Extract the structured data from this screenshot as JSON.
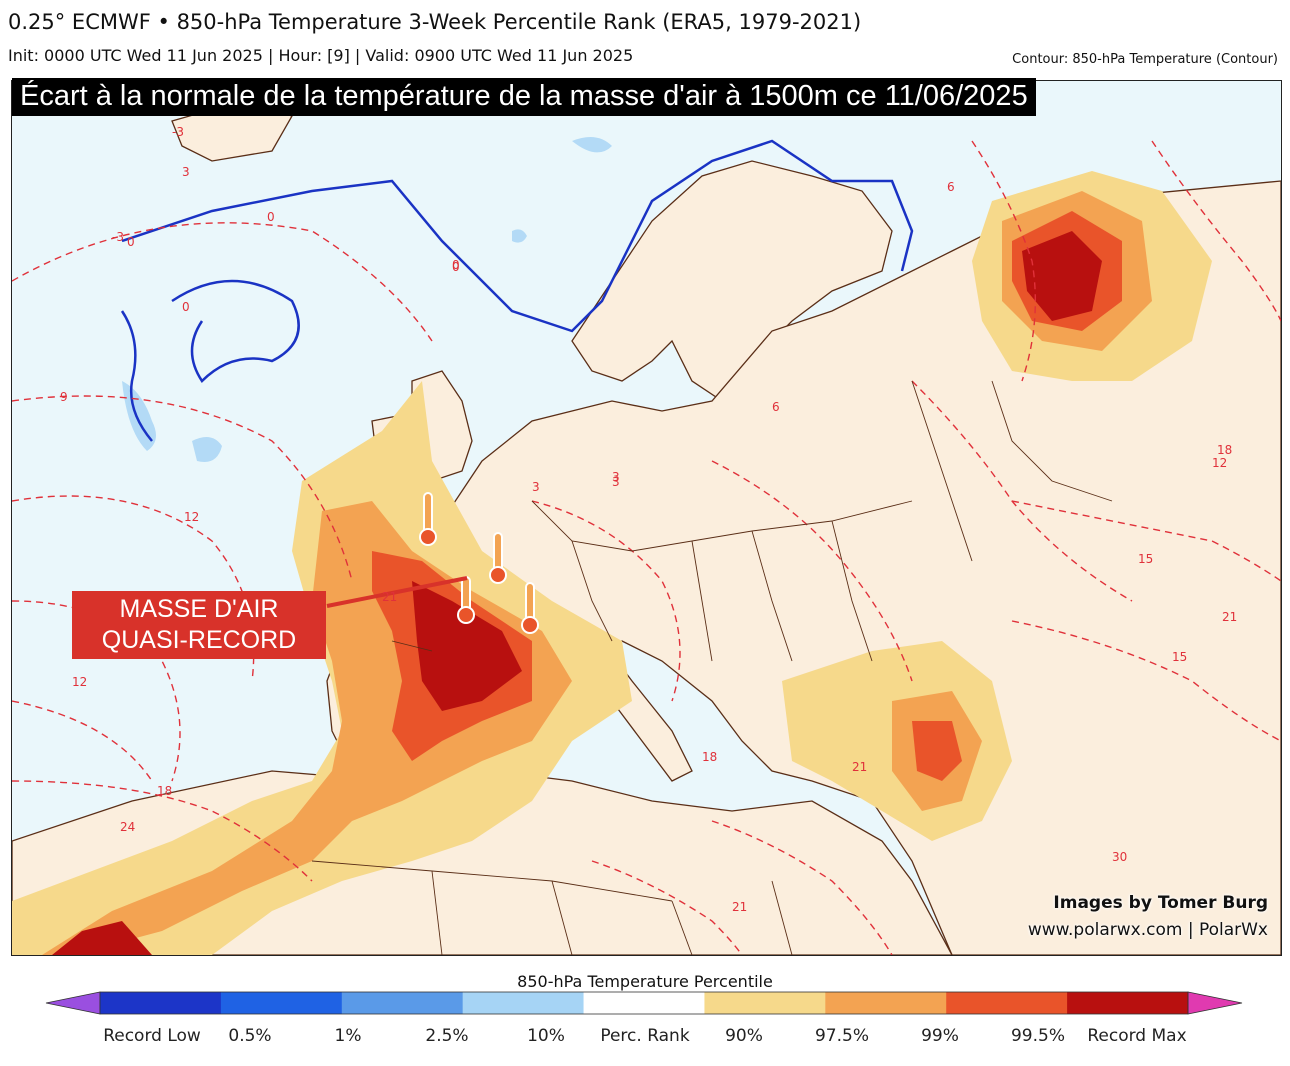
{
  "header": {
    "title": "0.25° ECMWF • 850-hPa Temperature 3-Week Percentile Rank (ERA5, 1979-2021)",
    "subtitle": "Init: 0000 UTC Wed 11 Jun 2025 | Hour: [9] | Valid: 0900 UTC Wed 11 Jun 2025",
    "contour_note": "Contour: 850-hPa Temperature (Contour)"
  },
  "banner": "Écart à la normale de la température de la masse d'air à 1500m ce 11/06/2025",
  "callout": {
    "line1": "MASSE D'AIR",
    "line2": "QUASI-RECORD"
  },
  "credits": {
    "line1": "Images by Tomer Burg",
    "line2": "www.polarwx.com | PolarWx"
  },
  "contour_labels": [
    "3",
    "0",
    "0",
    "0",
    "0",
    "6",
    "-3",
    "-3",
    "9",
    "6",
    "3",
    "12",
    "9",
    "12",
    "12",
    "15",
    "18",
    "18",
    "15",
    "18",
    "21",
    "24",
    "21",
    "21",
    "21",
    "30",
    "3",
    "3",
    "0"
  ],
  "colorbar": {
    "title": "850-hPa Temperature Percentile",
    "colors": [
      "#9a4fe0",
      "#1c35c8",
      "#1f62e4",
      "#5a9ae8",
      "#a6d4f5",
      "#ffffff",
      "#f6d98b",
      "#f3a352",
      "#e9542a",
      "#b8100f",
      "#e03ab0"
    ],
    "labels": [
      "Record Low",
      "0.5%",
      "1%",
      "2.5%",
      "10%",
      "Perc. Rank",
      "90%",
      "97.5%",
      "99%",
      "99.5%",
      "Record Max"
    ]
  },
  "colors": {
    "land": "#fbeedd",
    "sea": "#eaf7fb",
    "cold_contour": "#1a33c4",
    "warm_contour": "#e0313a",
    "border": "#5a2e17"
  }
}
